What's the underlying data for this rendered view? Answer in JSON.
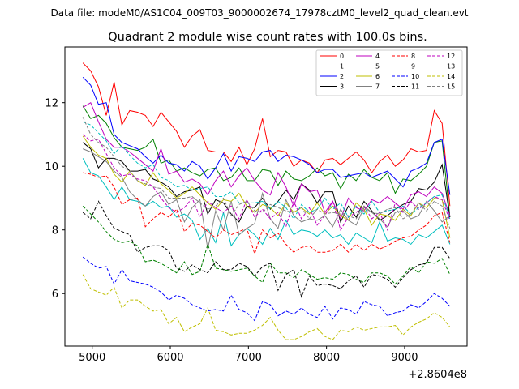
{
  "figure": {
    "suptitle": "Data file: modeM0/AS1C04_009T03_9000002674_17978cztM0_level2_quad_clean.evt"
  },
  "chart_data": {
    "type": "line",
    "title": "Quadrant 2 module wise count rates with 100.0s bins.",
    "xlabel": "",
    "ylabel": "",
    "x_offset_label": "+2.8604e8",
    "x_offset": 286040000,
    "xlim": [
      4650,
      9800
    ],
    "ylim": [
      4.35,
      13.75
    ],
    "x_ticks": [
      5000,
      6000,
      7000,
      8000,
      9000
    ],
    "x_tick_labels": [
      "5000",
      "6000",
      "7000",
      "8000",
      "9000"
    ],
    "y_ticks": [
      6,
      8,
      10,
      12
    ],
    "y_tick_labels": [
      "6",
      "8",
      "10",
      "12"
    ],
    "grid": false,
    "legend_position": "top-right",
    "legend_columns": 4,
    "x": [
      4880,
      4980,
      5080,
      5180,
      5280,
      5380,
      5480,
      5580,
      5680,
      5780,
      5880,
      5980,
      6080,
      6180,
      6280,
      6380,
      6480,
      6580,
      6680,
      6780,
      6880,
      6980,
      7080,
      7180,
      7280,
      7380,
      7480,
      7580,
      7680,
      7780,
      7880,
      7980,
      8080,
      8180,
      8280,
      8380,
      8480,
      8580,
      8680,
      8780,
      8880,
      8980,
      9080,
      9180,
      9280,
      9380,
      9480,
      9580
    ],
    "series": [
      {
        "name": "0",
        "color": "#ff0000",
        "dashed": false,
        "values": [
          13.25,
          13.0,
          12.5,
          11.6,
          12.65,
          11.3,
          11.75,
          11.7,
          11.6,
          11.25,
          11.7,
          11.4,
          11.1,
          10.6,
          10.95,
          11.15,
          10.5,
          10.45,
          10.45,
          10.15,
          10.6,
          10.05,
          10.55,
          11.5,
          10.3,
          10.5,
          10.45,
          10.0,
          10.2,
          10.1,
          9.8,
          10.2,
          10.25,
          10.05,
          10.25,
          10.45,
          10.2,
          9.8,
          10.15,
          10.35,
          10.0,
          10.2,
          10.55,
          10.45,
          10.5,
          11.75,
          11.35,
          8.75
        ]
      },
      {
        "name": "1",
        "color": "#008000",
        "dashed": false,
        "values": [
          11.9,
          11.5,
          11.6,
          11.35,
          10.9,
          10.6,
          10.55,
          10.5,
          10.6,
          10.85,
          10.1,
          10.2,
          9.85,
          9.95,
          9.8,
          9.7,
          9.9,
          9.95,
          9.55,
          9.65,
          9.95,
          9.55,
          9.55,
          9.9,
          9.85,
          9.4,
          9.85,
          9.6,
          9.55,
          9.7,
          9.95,
          9.7,
          9.8,
          9.3,
          9.75,
          9.55,
          9.9,
          9.65,
          9.55,
          9.8,
          9.15,
          9.6,
          9.55,
          9.75,
          10.0,
          10.75,
          10.8,
          8.4
        ]
      },
      {
        "name": "2",
        "color": "#0000ff",
        "dashed": false,
        "values": [
          12.8,
          12.55,
          11.95,
          12.0,
          11.0,
          10.75,
          10.65,
          10.55,
          10.3,
          10.1,
          10.35,
          10.1,
          10.05,
          9.85,
          10.15,
          10.0,
          9.6,
          9.95,
          10.4,
          9.85,
          10.3,
          10.25,
          10.15,
          10.45,
          10.5,
          10.15,
          10.35,
          10.3,
          10.2,
          10.05,
          9.8,
          9.9,
          9.9,
          9.65,
          9.7,
          9.75,
          9.8,
          9.65,
          9.75,
          9.85,
          9.6,
          9.35,
          9.85,
          9.95,
          10.1,
          10.75,
          10.85,
          9.1
        ]
      },
      {
        "name": "3",
        "color": "#000000",
        "dashed": false,
        "values": [
          10.75,
          10.55,
          9.95,
          10.25,
          10.25,
          10.15,
          9.85,
          9.85,
          9.9,
          9.6,
          9.5,
          9.35,
          9.05,
          9.2,
          9.25,
          9.35,
          8.5,
          8.95,
          8.85,
          8.5,
          8.25,
          8.75,
          8.7,
          9.0,
          8.65,
          8.9,
          9.25,
          8.95,
          9.45,
          9.25,
          8.85,
          9.2,
          9.2,
          8.25,
          8.75,
          8.4,
          8.9,
          8.6,
          8.3,
          8.45,
          8.65,
          8.8,
          8.9,
          9.3,
          9.25,
          9.5,
          10.05,
          8.4
        ]
      },
      {
        "name": "4",
        "color": "#bf00bf",
        "dashed": false,
        "values": [
          11.85,
          12.0,
          11.4,
          10.85,
          10.6,
          10.6,
          10.45,
          10.25,
          10.05,
          9.85,
          10.55,
          9.75,
          9.85,
          9.5,
          9.6,
          9.45,
          9.1,
          9.55,
          9.85,
          9.35,
          9.7,
          9.95,
          9.55,
          9.25,
          9.1,
          9.8,
          9.35,
          8.75,
          9.45,
          9.2,
          9.25,
          8.55,
          8.9,
          8.35,
          9.0,
          8.7,
          8.6,
          8.95,
          8.85,
          9.05,
          8.85,
          8.65,
          9.1,
          9.2,
          9.05,
          9.35,
          9.15,
          8.45
        ]
      },
      {
        "name": "5",
        "color": "#00bfbf",
        "dashed": false,
        "values": [
          10.25,
          9.8,
          9.7,
          9.35,
          8.95,
          9.35,
          8.95,
          8.9,
          8.75,
          8.9,
          8.7,
          8.75,
          8.4,
          8.5,
          8.3,
          7.7,
          8.05,
          7.6,
          8.55,
          7.5,
          7.85,
          8.05,
          7.85,
          7.55,
          8.05,
          7.7,
          8.3,
          7.85,
          8.0,
          7.95,
          7.8,
          8.0,
          7.75,
          7.85,
          7.55,
          7.9,
          7.75,
          7.6,
          8.25,
          7.65,
          7.75,
          7.7,
          7.55,
          7.85,
          7.75,
          7.95,
          8.15,
          7.55
        ]
      },
      {
        "name": "6",
        "color": "#bfbf00",
        "dashed": false,
        "values": [
          10.95,
          10.6,
          10.35,
          10.25,
          9.75,
          9.5,
          9.85,
          9.55,
          9.4,
          9.8,
          9.45,
          9.25,
          9.0,
          9.15,
          9.35,
          9.1,
          8.85,
          8.65,
          8.95,
          8.9,
          9.15,
          8.75,
          8.55,
          8.8,
          8.7,
          8.45,
          8.85,
          8.55,
          8.7,
          8.5,
          8.85,
          8.5,
          8.75,
          8.45,
          8.3,
          8.85,
          8.65,
          8.15,
          8.5,
          8.45,
          8.3,
          8.65,
          8.45,
          8.85,
          8.7,
          9.0,
          8.95,
          7.75
        ]
      },
      {
        "name": "7",
        "color": "#808080",
        "dashed": false,
        "values": [
          10.55,
          10.45,
          10.3,
          10.15,
          9.85,
          9.65,
          9.2,
          8.95,
          8.75,
          9.05,
          9.2,
          8.8,
          8.95,
          8.25,
          8.7,
          8.95,
          7.4,
          8.6,
          8.0,
          8.9,
          7.85,
          8.05,
          8.2,
          9.15,
          8.35,
          8.05,
          8.95,
          8.45,
          8.25,
          8.35,
          8.3,
          8.45,
          8.1,
          8.65,
          8.3,
          8.15,
          8.7,
          8.55,
          8.35,
          8.1,
          8.55,
          8.6,
          8.35,
          8.45,
          8.9,
          8.6,
          8.25,
          8.45
        ]
      },
      {
        "name": "8",
        "color": "#ff0000",
        "dashed": true,
        "values": [
          9.8,
          9.75,
          9.65,
          9.7,
          9.35,
          8.8,
          8.95,
          9.0,
          8.1,
          8.35,
          8.55,
          8.4,
          8.65,
          7.95,
          8.2,
          8.15,
          7.95,
          7.75,
          8.0,
          7.85,
          7.95,
          8.05,
          7.25,
          8.0,
          7.75,
          7.9,
          7.55,
          7.3,
          7.45,
          7.5,
          7.3,
          7.3,
          7.35,
          7.55,
          7.3,
          7.55,
          7.35,
          7.55,
          7.4,
          7.5,
          7.65,
          7.75,
          7.8,
          8.0,
          8.15,
          8.45,
          8.55,
          7.6
        ]
      },
      {
        "name": "9",
        "color": "#008000",
        "dashed": true,
        "values": [
          8.75,
          8.5,
          8.25,
          7.95,
          7.7,
          7.6,
          7.65,
          7.5,
          7.0,
          7.05,
          6.95,
          6.8,
          6.65,
          7.0,
          6.6,
          6.7,
          7.55,
          6.8,
          6.75,
          6.7,
          6.75,
          6.8,
          6.55,
          6.35,
          6.95,
          6.65,
          6.65,
          6.5,
          6.75,
          6.6,
          6.45,
          6.5,
          6.45,
          6.65,
          6.6,
          6.45,
          6.35,
          6.65,
          6.65,
          6.55,
          6.3,
          6.55,
          6.85,
          6.65,
          7.0,
          6.95,
          7.1,
          6.6
        ]
      },
      {
        "name": "10",
        "color": "#0000ff",
        "dashed": true,
        "values": [
          7.15,
          6.95,
          6.8,
          6.85,
          6.3,
          6.75,
          6.4,
          6.35,
          6.3,
          6.2,
          6.05,
          5.8,
          5.95,
          5.85,
          5.65,
          5.55,
          5.45,
          5.5,
          5.45,
          5.95,
          5.5,
          5.4,
          5.15,
          5.75,
          5.65,
          5.3,
          5.45,
          5.35,
          5.55,
          5.35,
          5.25,
          5.6,
          5.2,
          5.55,
          5.5,
          5.35,
          5.75,
          5.65,
          5.6,
          5.3,
          5.4,
          5.45,
          5.65,
          5.55,
          5.75,
          6.0,
          5.85,
          5.6
        ]
      },
      {
        "name": "11",
        "color": "#000000",
        "dashed": true,
        "values": [
          8.55,
          8.35,
          8.9,
          8.45,
          8.05,
          7.95,
          7.85,
          7.3,
          7.45,
          7.5,
          7.5,
          7.35,
          6.8,
          6.7,
          6.9,
          6.75,
          6.65,
          7.0,
          6.75,
          6.75,
          6.95,
          6.85,
          6.55,
          6.85,
          6.95,
          6.1,
          6.6,
          6.75,
          5.9,
          6.55,
          6.25,
          6.3,
          6.25,
          6.15,
          6.4,
          6.55,
          6.2,
          6.6,
          6.55,
          6.45,
          6.2,
          6.5,
          6.75,
          6.9,
          6.95,
          7.45,
          7.45,
          7.1
        ]
      },
      {
        "name": "12",
        "color": "#bf00bf",
        "dashed": true,
        "values": [
          11.0,
          10.8,
          10.85,
          10.4,
          9.95,
          9.7,
          9.75,
          9.6,
          9.55,
          9.35,
          9.0,
          8.7,
          8.55,
          8.7,
          9.0,
          8.4,
          8.9,
          8.7,
          8.55,
          8.75,
          8.35,
          8.95,
          8.4,
          8.65,
          8.35,
          8.55,
          8.1,
          8.9,
          8.35,
          8.7,
          8.15,
          8.45,
          8.9,
          8.0,
          8.4,
          8.55,
          8.75,
          8.35,
          8.55,
          8.0,
          8.85,
          8.55,
          8.9,
          8.65,
          8.85,
          9.05,
          8.95,
          8.3
        ]
      },
      {
        "name": "13",
        "color": "#00bfbf",
        "dashed": true,
        "values": [
          11.4,
          11.3,
          11.05,
          10.8,
          10.4,
          10.65,
          10.35,
          10.1,
          9.95,
          10.05,
          9.65,
          9.55,
          9.35,
          9.4,
          9.25,
          9.3,
          9.35,
          9.05,
          9.05,
          9.2,
          8.85,
          8.85,
          8.85,
          8.9,
          8.65,
          8.9,
          8.7,
          8.35,
          8.8,
          8.55,
          8.65,
          9.0,
          8.65,
          8.85,
          8.4,
          8.75,
          8.5,
          8.9,
          8.55,
          8.6,
          8.65,
          8.75,
          8.5,
          8.7,
          8.85,
          9.05,
          9.1,
          8.35
        ]
      },
      {
        "name": "14",
        "color": "#bfbf00",
        "dashed": true,
        "values": [
          6.6,
          6.15,
          6.05,
          5.95,
          6.2,
          5.55,
          5.8,
          5.8,
          5.6,
          5.45,
          5.5,
          5.05,
          5.25,
          4.8,
          4.95,
          5.05,
          5.55,
          4.85,
          4.8,
          4.7,
          4.75,
          4.75,
          4.85,
          5.0,
          5.25,
          4.85,
          4.55,
          4.55,
          4.65,
          4.8,
          4.9,
          4.65,
          4.55,
          4.85,
          4.8,
          4.95,
          4.85,
          4.9,
          4.95,
          4.95,
          5.0,
          4.7,
          4.95,
          5.1,
          5.2,
          5.4,
          5.25,
          4.95
        ]
      },
      {
        "name": "15",
        "color": "#808080",
        "dashed": true,
        "values": [
          11.55,
          11.0,
          10.75,
          10.6,
          10.3,
          10.0,
          9.85,
          9.55,
          9.45,
          9.35,
          9.3,
          9.0,
          9.0,
          9.0,
          9.05,
          8.85,
          8.65,
          8.75,
          9.0,
          8.45,
          8.8,
          8.9,
          8.6,
          8.55,
          8.8,
          8.7,
          8.6,
          8.55,
          8.7,
          8.35,
          8.65,
          8.5,
          8.55,
          8.5,
          8.45,
          8.35,
          8.75,
          8.55,
          8.5,
          8.65,
          8.7,
          8.35,
          8.5,
          8.85,
          8.6,
          8.9,
          8.75,
          8.05
        ]
      }
    ]
  }
}
